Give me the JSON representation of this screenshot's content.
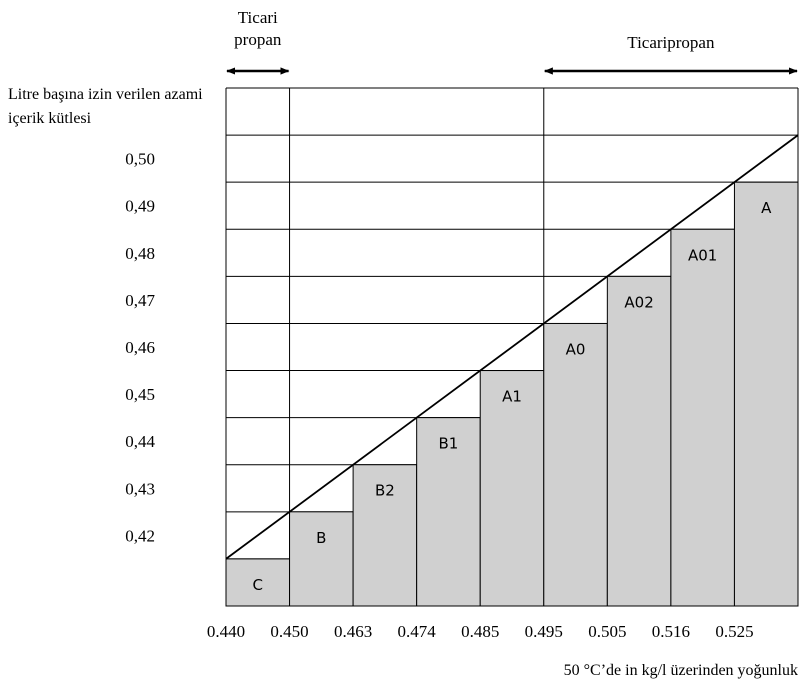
{
  "chart_data": {
    "type": "bar",
    "ylabel": "Litre başına izin verilen azami içerik kütlesi",
    "xlabel": "50 °C’de in kg/l üzerinden yoğunluk",
    "x_ticks": [
      "0.440",
      "0.450",
      "0.463",
      "0.474",
      "0.485",
      "0.495",
      "0.505",
      "0.516",
      "0.525"
    ],
    "y_ticks": [
      "0,50",
      "0,49",
      "0,48",
      "0,47",
      "0,46",
      "0,45",
      "0,44",
      "0,43",
      "0,42"
    ],
    "bars": [
      {
        "label": "C",
        "x_from": 0.44,
        "x_to": 0.45,
        "value": 0.42
      },
      {
        "label": "B",
        "x_from": 0.45,
        "x_to": 0.463,
        "value": 0.43
      },
      {
        "label": "B2",
        "x_from": 0.463,
        "x_to": 0.474,
        "value": 0.44
      },
      {
        "label": "B1",
        "x_from": 0.474,
        "x_to": 0.485,
        "value": 0.45
      },
      {
        "label": "A1",
        "x_from": 0.485,
        "x_to": 0.495,
        "value": 0.46
      },
      {
        "label": "A0",
        "x_from": 0.495,
        "x_to": 0.505,
        "value": 0.47
      },
      {
        "label": "A02",
        "x_from": 0.505,
        "x_to": 0.516,
        "value": 0.48
      },
      {
        "label": "A01",
        "x_from": 0.516,
        "x_to": 0.525,
        "value": 0.49
      },
      {
        "label": "A",
        "x_from": 0.525,
        "x_to": 0.535,
        "value": 0.5
      }
    ],
    "ylim": [
      0.41,
      0.52
    ],
    "diagonal": {
      "from": [
        0.44,
        0.42
      ],
      "to": [
        0.535,
        0.51
      ]
    },
    "ranges": [
      {
        "label_lines": [
          "Ticari",
          "propan"
        ],
        "x_from": 0.44,
        "x_to": 0.45
      },
      {
        "label_lines": [
          "Ticaripropan"
        ],
        "x_from": 0.495,
        "x_to": 0.535
      }
    ],
    "grid": true,
    "colors": {
      "bar_fill": "#d0d0d0",
      "line": "#000000",
      "grid": "#000000"
    }
  }
}
